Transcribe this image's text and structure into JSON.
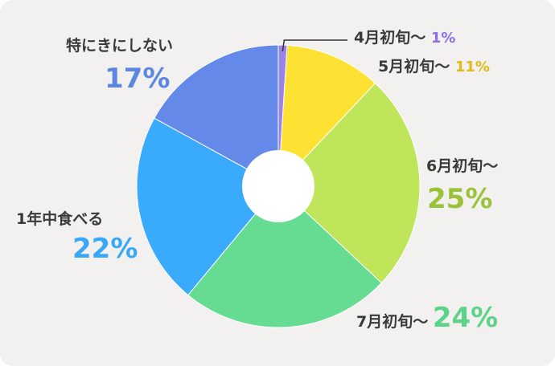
{
  "chart_data": {
    "type": "pie",
    "donut": true,
    "slices": [
      {
        "label": "4月初旬〜",
        "value": 1,
        "value_label": "1%",
        "color": "#9b82e6"
      },
      {
        "label": "5月初旬〜",
        "value": 11,
        "value_label": "11%",
        "color": "#fde234"
      },
      {
        "label": "6月初旬〜",
        "value": 25,
        "value_label": "25%",
        "color": "#bfe65a"
      },
      {
        "label": "7月初旬〜",
        "value": 24,
        "value_label": "24%",
        "color": "#66dc92"
      },
      {
        "label": "1年中食べる",
        "value": 22,
        "value_label": "22%",
        "color": "#3aaafc"
      },
      {
        "label": "特にきにしない",
        "value": 17,
        "value_label": "17%",
        "color": "#6589e8"
      }
    ],
    "label_colors": {
      "4月初旬〜": "#8d6ee6",
      "5月初旬〜": "#e0bb16",
      "6月初旬〜": "#9cc23a",
      "7月初旬〜": "#5cd28a",
      "1年中食べる": "#3aa8f8",
      "特にきにしない": "#5d86e2"
    }
  }
}
